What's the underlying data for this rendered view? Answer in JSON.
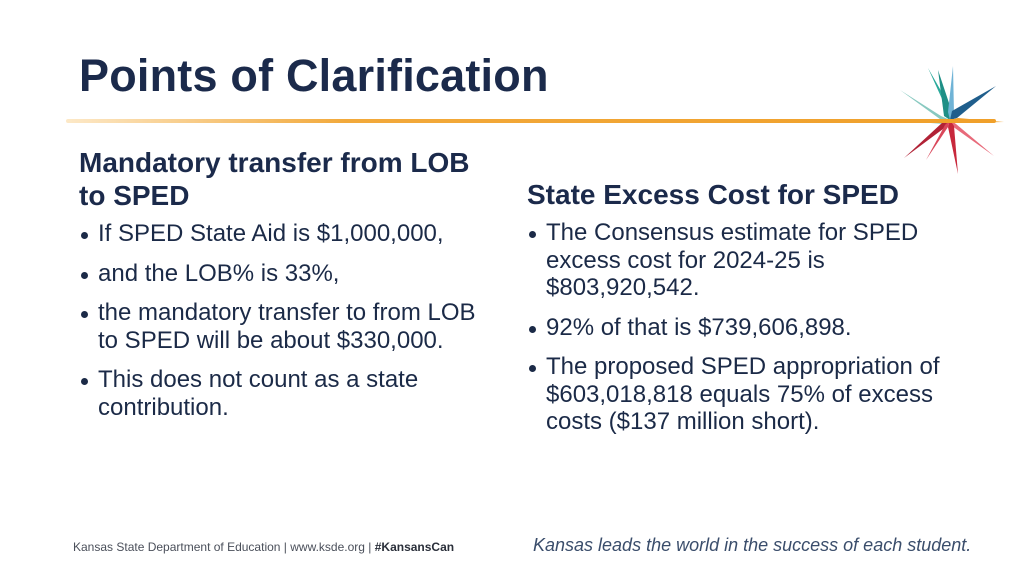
{
  "title": "Points of Clarification",
  "left": {
    "heading": "Mandatory transfer from LOB to SPED",
    "bullets": [
      "If SPED State Aid is $1,000,000,",
      "and the LOB% is 33%,",
      "the mandatory transfer to from LOB to SPED will be about $330,000.",
      "This does not count as a state contribution."
    ]
  },
  "right": {
    "heading": "State Excess Cost for SPED",
    "bullets": [
      "The Consensus estimate for SPED excess cost for 2024-25 is $803,920,542.",
      "92% of that is $739,606,898.",
      "The proposed SPED appropriation of $603,018,818 equals 75% of excess costs ($137 million short)."
    ]
  },
  "footer": {
    "org": "Kansas State Department of Education | www.ksde.org | ",
    "hashtag": "#KansansCan",
    "tagline": "Kansas leads the world in the success of each student."
  },
  "colors": {
    "navy": "#1b2a4b",
    "accent_rule": "#f0a02a",
    "star_teal": "#1a9a8a",
    "star_blue": "#1f5e8c",
    "star_red": "#c8283c",
    "star_pink": "#e86a7a"
  },
  "icons": {
    "logo": "ksde-star-logo-icon",
    "bullet": "bullet-dot-icon"
  }
}
